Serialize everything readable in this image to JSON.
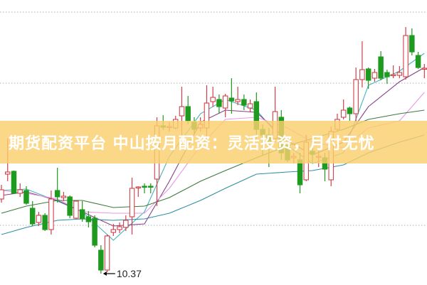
{
  "banner": {
    "title": "期货配资平台 中山按月配资：灵活投资，月付无忧"
  },
  "colors": {
    "up": "#d0404a",
    "down": "#1e9a1e",
    "grid": "#b0b0b0",
    "banner": "#facf6e"
  },
  "chart_data": {
    "type": "candlestick",
    "title": "",
    "xlabel": "",
    "ylabel": "",
    "grid": "horizontal dotted",
    "annotation": {
      "text": "10.37",
      "candle_index": 16,
      "price": 10.37
    },
    "ohlc": [
      [
        11.42,
        11.62,
        11.37,
        11.55
      ],
      [
        11.77,
        12.27,
        11.67,
        11.8
      ],
      [
        11.81,
        11.82,
        11.49,
        11.5
      ],
      [
        11.5,
        11.64,
        11.45,
        11.55
      ],
      [
        11.54,
        11.6,
        11.34,
        11.36
      ],
      [
        11.29,
        11.39,
        11.04,
        11.07
      ],
      [
        11.09,
        11.24,
        11.04,
        11.19
      ],
      [
        11.19,
        11.22,
        10.97,
        10.99
      ],
      [
        10.99,
        11.54,
        10.92,
        11.42
      ],
      [
        11.54,
        11.86,
        11.37,
        11.45
      ],
      [
        11.44,
        11.52,
        11.39,
        11.46
      ],
      [
        11.45,
        11.47,
        11.15,
        11.19
      ],
      [
        11.15,
        11.4,
        11.14,
        11.39
      ],
      [
        11.27,
        11.39,
        11.1,
        11.14
      ],
      [
        11.17,
        11.25,
        11.02,
        11.1
      ],
      [
        11.15,
        11.19,
        10.74,
        10.77
      ],
      [
        10.7,
        10.77,
        10.37,
        10.42
      ],
      [
        10.42,
        10.92,
        10.39,
        10.9
      ],
      [
        10.95,
        11.07,
        10.9,
        10.99
      ],
      [
        10.99,
        11.09,
        10.94,
        11.03
      ],
      [
        11.02,
        11.19,
        10.97,
        11.12
      ],
      [
        11.17,
        11.72,
        10.92,
        11.57
      ],
      [
        11.58,
        11.6,
        11.45,
        11.59
      ],
      [
        11.6,
        11.64,
        11.5,
        11.59
      ],
      [
        11.6,
        11.64,
        11.5,
        11.59
      ],
      [
        11.7,
        12.57,
        11.32,
        12.45
      ],
      [
        12.45,
        12.6,
        12.39,
        12.43
      ],
      [
        12.43,
        12.5,
        12.37,
        12.44
      ],
      [
        12.42,
        12.59,
        12.4,
        12.54
      ],
      [
        12.59,
        13.0,
        12.17,
        12.72
      ],
      [
        12.72,
        12.87,
        12.47,
        12.52
      ],
      [
        12.5,
        12.57,
        12.34,
        12.4
      ],
      [
        12.42,
        12.57,
        12.37,
        12.47
      ],
      [
        12.42,
        13.02,
        12.22,
        12.77
      ],
      [
        12.79,
        13.0,
        12.72,
        12.85
      ],
      [
        12.82,
        12.89,
        12.62,
        12.72
      ],
      [
        12.7,
        12.9,
        12.57,
        12.87
      ],
      [
        12.84,
        13.12,
        12.62,
        12.8
      ],
      [
        12.79,
        13.0,
        12.74,
        12.82
      ],
      [
        12.82,
        12.89,
        12.67,
        12.74
      ],
      [
        12.7,
        12.82,
        12.64,
        12.76
      ],
      [
        12.79,
        12.92,
        12.27,
        12.4
      ],
      [
        12.4,
        12.47,
        12.04,
        12.32
      ],
      [
        12.32,
        12.42,
        11.87,
        12.22
      ],
      [
        12.27,
        13.0,
        12.22,
        12.65
      ],
      [
        12.57,
        12.67,
        11.97,
        12.07
      ],
      [
        12.17,
        12.22,
        11.94,
        11.97
      ],
      [
        12.0,
        12.07,
        11.92,
        12.02
      ],
      [
        11.97,
        12.07,
        11.5,
        11.62
      ],
      [
        11.69,
        12.32,
        11.67,
        12.22
      ],
      [
        12.09,
        12.15,
        11.92,
        12.05
      ],
      [
        12.01,
        12.1,
        11.87,
        12.02
      ],
      [
        12.0,
        12.07,
        11.67,
        11.84
      ],
      [
        11.69,
        12.44,
        11.6,
        12.37
      ],
      [
        12.4,
        12.62,
        12.37,
        12.54
      ],
      [
        12.57,
        12.82,
        12.54,
        12.67
      ],
      [
        12.7,
        12.72,
        12.52,
        12.62
      ],
      [
        12.62,
        13.27,
        12.5,
        13.1
      ],
      [
        13.1,
        13.64,
        12.99,
        13.24
      ],
      [
        13.25,
        13.27,
        12.97,
        13.09
      ],
      [
        13.12,
        13.25,
        13.07,
        13.2
      ],
      [
        13.42,
        13.5,
        13.09,
        13.12
      ],
      [
        13.2,
        13.24,
        13.04,
        13.14
      ],
      [
        13.16,
        13.3,
        13.12,
        13.17
      ],
      [
        13.16,
        13.29,
        13.12,
        13.2
      ],
      [
        13.14,
        13.84,
        13.1,
        13.72
      ],
      [
        13.72,
        13.82,
        13.44,
        13.49
      ],
      [
        13.44,
        13.49,
        13.25,
        13.27
      ],
      [
        13.25,
        13.32,
        13.12,
        13.26
      ]
    ],
    "ma_indices": [
      0,
      4,
      9,
      13,
      18,
      23,
      27,
      32,
      36,
      41,
      46,
      50,
      55,
      59,
      64,
      68
    ],
    "ma_series": [
      {
        "color": "#45b3bd",
        "values": [
          11.54,
          11.56,
          11.39,
          11.24,
          10.84,
          11.24,
          12.02,
          12.62,
          12.82,
          12.67,
          12.17,
          11.92,
          12.07,
          13.02,
          13.22,
          13.47
        ]
      },
      {
        "color": "#8a3f86",
        "values": [
          11.47,
          11.52,
          11.4,
          11.24,
          11.04,
          11.07,
          11.67,
          12.5,
          12.67,
          12.64,
          12.24,
          12.04,
          12.22,
          12.72,
          13.07,
          13.27
        ]
      },
      {
        "color": "#e69ae6",
        "values": [
          11.54,
          11.5,
          11.42,
          11.24,
          11.22,
          11.22,
          11.57,
          12.17,
          12.54,
          12.57,
          12.42,
          12.22,
          12.14,
          12.42,
          12.52,
          12.92
        ]
      },
      {
        "color": "#3d7a3d",
        "values": [
          11.22,
          11.32,
          11.4,
          11.4,
          11.3,
          11.32,
          11.44,
          11.67,
          11.82,
          12.0,
          12.17,
          12.27,
          12.4,
          12.54,
          12.62,
          12.67
        ]
      },
      {
        "color": "#2f8fa3",
        "values": [
          10.92,
          11.02,
          11.12,
          11.14,
          11.12,
          11.14,
          11.22,
          11.4,
          11.57,
          11.77,
          11.8,
          11.82,
          11.9,
          12.07,
          12.22,
          12.32
        ]
      }
    ]
  }
}
